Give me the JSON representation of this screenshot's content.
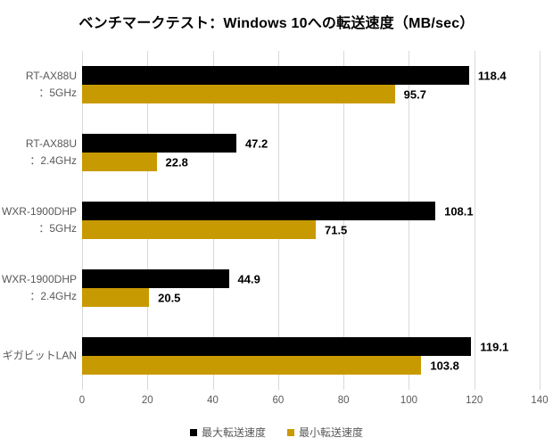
{
  "colors": {
    "max": "#000000",
    "min": "#C89A02",
    "gridline": "#D9D9D9",
    "axis_text": "#595959",
    "value_text": "#000000"
  },
  "chart_data": {
    "type": "bar",
    "orientation": "horizontal",
    "title": "ベンチマークテスト：Windows 10への転送速度（MB/sec）",
    "categories": [
      "RT-AX88U：5GHz",
      "RT-AX88U：2.4GHz",
      "WXR-1900DHP：5GHz",
      "WXR-1900DHP：2.4GHz",
      "ギガビットLAN"
    ],
    "categories_lines": [
      [
        "RT-AX88U",
        "：5GHz"
      ],
      [
        "RT-AX88U",
        "：2.4GHz"
      ],
      [
        "WXR-1900DHP",
        "：5GHz"
      ],
      [
        "WXR-1900DHP",
        "：2.4GHz"
      ],
      [
        "ギガビットLAN"
      ]
    ],
    "series": [
      {
        "name": "最大転送速度",
        "color_key": "max",
        "values": [
          118.4,
          47.2,
          108.1,
          44.9,
          119.1
        ]
      },
      {
        "name": "最小転送速度",
        "color_key": "min",
        "values": [
          95.7,
          22.8,
          71.5,
          20.5,
          103.8
        ]
      }
    ],
    "xlabel": "",
    "ylabel": "",
    "xlim": [
      0,
      140
    ],
    "xticks": [
      0,
      20,
      40,
      60,
      80,
      100,
      120,
      140
    ],
    "grid": true,
    "data_labels": true,
    "legend_position": "bottom"
  }
}
